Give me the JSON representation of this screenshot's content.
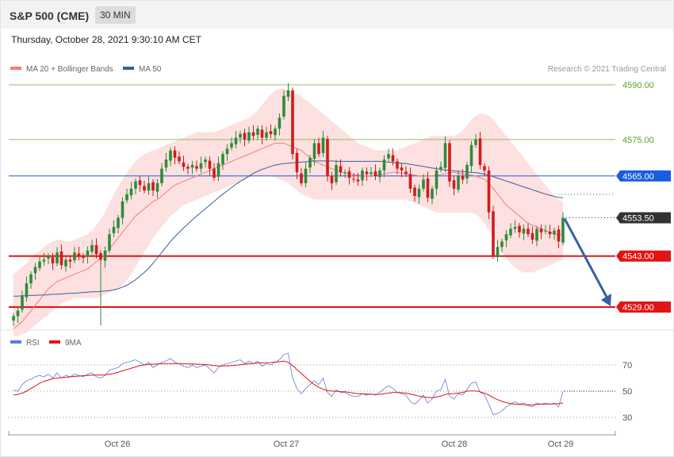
{
  "header": {
    "title": "S&P 500 (CME)",
    "timeframe": "30 MIN"
  },
  "datetime": "Thursday, October 28, 2021 9:30:10 AM CET",
  "credit": "Research © 2021 Trading Central",
  "colors": {
    "ma20": "#f47c7c",
    "bands": "#fde0e0",
    "ma50": "#3b5e9e",
    "up": "#2e8b3a",
    "down": "#d01c1c",
    "resistance": "#8cc060",
    "pivot": "#1a5be0",
    "support": "#e31414",
    "arrow": "#3660a8",
    "rsi": "#5b7fd4",
    "rsi_ma": "#e31414"
  },
  "chart_data": [
    {
      "type": "candlestick",
      "title": "S&P 500 (CME) 30 MIN",
      "legend": [
        "MA 20 + Bollinger Bands",
        "MA 50"
      ],
      "ylim": [
        4521,
        4593
      ],
      "x_ticks": [
        "Oct 26",
        "Oct 27",
        "Oct 28",
        "Oct 29"
      ],
      "levels": [
        {
          "value": 4590.0,
          "label": "4590.00",
          "kind": "resistance"
        },
        {
          "value": 4575.0,
          "label": "4575.00",
          "kind": "resistance"
        },
        {
          "value": 4565.0,
          "label": "4565.00",
          "kind": "pivot"
        },
        {
          "value": 4553.5,
          "label": "4553.50",
          "kind": "last"
        },
        {
          "value": 4543.0,
          "label": "4543.00",
          "kind": "support"
        },
        {
          "value": 4529.0,
          "label": "4529.00",
          "kind": "support"
        }
      ],
      "close": [
        4526.5,
        4528.0,
        4532.0,
        4535.5,
        4538.0,
        4540.0,
        4541.5,
        4542.0,
        4543.0,
        4541.0,
        4544.0,
        4540.5,
        4542.0,
        4541.5,
        4544.0,
        4543.0,
        4542.5,
        4544.5,
        4546.0,
        4543.5,
        4542.0,
        4544.5,
        4549.0,
        4551.0,
        4553.5,
        4558.0,
        4560.0,
        4561.5,
        4563.5,
        4562.5,
        4561.0,
        4563.0,
        4561.0,
        4563.0,
        4567.0,
        4569.5,
        4572.0,
        4570.0,
        4569.0,
        4567.5,
        4567.0,
        4568.0,
        4567.0,
        4568.5,
        4569.5,
        4567.0,
        4564.5,
        4568.5,
        4571.0,
        4572.5,
        4574.0,
        4575.5,
        4576.5,
        4575.0,
        4577.0,
        4576.0,
        4578.0,
        4575.5,
        4577.0,
        4576.5,
        4578.0,
        4581.0,
        4587.0,
        4588.5,
        4571.0,
        4566.0,
        4563.0,
        4567.0,
        4570.0,
        4574.0,
        4571.0,
        4575.5,
        4565.0,
        4563.0,
        4568.0,
        4566.0,
        4566.0,
        4564.5,
        4564.0,
        4563.5,
        4566.5,
        4565.5,
        4566.0,
        4565.0,
        4566.5,
        4569.5,
        4571.0,
        4569.0,
        4567.0,
        4566.5,
        4565.5,
        4561.5,
        4559.5,
        4561.5,
        4564.0,
        4559.0,
        4561.5,
        4566.5,
        4567.5,
        4574.0,
        4563.5,
        4561.5,
        4565.0,
        4564.0,
        4568.0,
        4573.5,
        4575.0,
        4568.0,
        4566.5,
        4555.0,
        4543.0,
        4545.5,
        4547.0,
        4549.0,
        4550.5,
        4551.0,
        4549.5,
        4550.5,
        4549.0,
        4547.5,
        4550.5,
        4549.5,
        4550.0,
        4549.0,
        4550.0,
        4547.0,
        4553.5
      ],
      "ma20": [
        4523.0,
        4524.0,
        4525.0,
        4526.5,
        4528.0,
        4529.5,
        4531.0,
        4532.5,
        4534.0,
        4535.0,
        4536.0,
        4536.5,
        4537.0,
        4537.5,
        4538.0,
        4538.5,
        4539.0,
        4539.5,
        4540.5,
        4541.5,
        4542.5,
        4543.5,
        4545.0,
        4546.5,
        4548.0,
        4549.5,
        4551.0,
        4552.5,
        4554.0,
        4555.0,
        4556.0,
        4557.0,
        4558.0,
        4558.5,
        4559.5,
        4560.5,
        4561.5,
        4562.5,
        4563.0,
        4563.5,
        4564.0,
        4564.5,
        4565.0,
        4565.5,
        4566.0,
        4566.5,
        4567.0,
        4567.5,
        4568.0,
        4568.5,
        4569.0,
        4569.5,
        4570.0,
        4570.5,
        4571.0,
        4571.5,
        4572.0,
        4572.5,
        4573.0,
        4573.5,
        4574.0,
        4574.0,
        4574.0,
        4573.5,
        4573.0,
        4572.5,
        4572.0,
        4571.0,
        4570.0,
        4569.0,
        4568.5,
        4568.0,
        4567.5,
        4567.0,
        4566.5,
        4566.0,
        4565.8,
        4565.6,
        4565.4,
        4565.2,
        4565.0,
        4565.0,
        4565.0,
        4565.2,
        4565.4,
        4565.6,
        4565.8,
        4566.0,
        4566.0,
        4565.8,
        4565.6,
        4565.4,
        4565.2,
        4565.0,
        4565.0,
        4565.0,
        4565.0,
        4565.2,
        4565.4,
        4565.6,
        4565.8,
        4566.0,
        4565.8,
        4565.6,
        4565.4,
        4565.2,
        4565.0,
        4564.5,
        4564.0,
        4563.0,
        4561.5,
        4560.0,
        4558.5,
        4557.0,
        4556.0,
        4555.0,
        4554.0,
        4553.0,
        4552.0,
        4551.5,
        4551.0,
        4550.5,
        4550.0,
        4549.5,
        4549.0,
        4548.8,
        4549.0
      ],
      "upper_band": [
        4538.0,
        4539.0,
        4540.0,
        4541.0,
        4542.5,
        4543.5,
        4544.5,
        4545.5,
        4546.5,
        4547.0,
        4547.5,
        4547.5,
        4547.0,
        4547.0,
        4547.5,
        4548.0,
        4548.5,
        4549.0,
        4550.0,
        4551.5,
        4553.0,
        4555.0,
        4557.5,
        4560.0,
        4562.0,
        4564.0,
        4566.0,
        4567.5,
        4569.0,
        4570.0,
        4571.0,
        4571.5,
        4572.0,
        4572.5,
        4573.0,
        4573.5,
        4574.0,
        4574.5,
        4575.0,
        4575.5,
        4576.0,
        4576.5,
        4577.0,
        4577.0,
        4577.0,
        4577.0,
        4577.0,
        4577.5,
        4578.0,
        4578.5,
        4579.0,
        4579.5,
        4580.0,
        4580.5,
        4581.0,
        4582.0,
        4583.0,
        4584.5,
        4586.0,
        4587.5,
        4588.5,
        4589.0,
        4589.0,
        4588.5,
        4588.0,
        4587.5,
        4587.0,
        4586.0,
        4585.0,
        4584.0,
        4583.0,
        4582.0,
        4581.0,
        4580.0,
        4579.0,
        4578.0,
        4577.0,
        4576.0,
        4575.0,
        4574.0,
        4573.5,
        4573.0,
        4572.5,
        4572.0,
        4572.0,
        4572.0,
        4572.0,
        4572.0,
        4572.0,
        4572.5,
        4573.0,
        4573.5,
        4574.0,
        4574.5,
        4575.0,
        4575.5,
        4576.0,
        4576.0,
        4576.0,
        4576.0,
        4576.0,
        4576.0,
        4576.5,
        4577.5,
        4579.0,
        4580.5,
        4581.5,
        4582.0,
        4582.0,
        4581.5,
        4580.5,
        4579.0,
        4577.5,
        4576.0,
        4574.5,
        4573.0,
        4571.5,
        4570.0,
        4568.5,
        4567.0,
        4565.5,
        4564.0,
        4562.5,
        4561.0,
        4559.5,
        4558.5,
        4558.0
      ],
      "lower_band": [
        4521.0,
        4521.0,
        4521.5,
        4522.0,
        4523.0,
        4524.0,
        4525.0,
        4526.0,
        4527.0,
        4528.0,
        4529.0,
        4530.0,
        4530.5,
        4531.0,
        4531.5,
        4531.5,
        4531.5,
        4531.5,
        4531.5,
        4531.5,
        4532.0,
        4532.5,
        4533.0,
        4533.5,
        4534.0,
        4535.0,
        4536.5,
        4538.0,
        4540.0,
        4542.0,
        4544.0,
        4546.0,
        4548.0,
        4549.5,
        4551.0,
        4552.5,
        4554.0,
        4555.0,
        4556.0,
        4557.0,
        4557.5,
        4558.0,
        4558.5,
        4559.0,
        4559.5,
        4560.0,
        4560.5,
        4561.0,
        4561.5,
        4562.0,
        4562.5,
        4563.0,
        4563.5,
        4564.0,
        4564.5,
        4565.0,
        4565.0,
        4565.0,
        4565.0,
        4565.0,
        4564.5,
        4564.0,
        4563.5,
        4563.0,
        4562.0,
        4561.0,
        4560.0,
        4559.5,
        4559.0,
        4558.5,
        4558.5,
        4558.5,
        4558.5,
        4558.5,
        4558.5,
        4558.5,
        4558.5,
        4558.5,
        4558.5,
        4558.5,
        4558.5,
        4558.5,
        4558.5,
        4558.5,
        4558.5,
        4558.5,
        4558.5,
        4558.5,
        4558.5,
        4558.5,
        4558.5,
        4558.0,
        4557.5,
        4557.0,
        4556.5,
        4556.0,
        4555.5,
        4555.0,
        4555.0,
        4555.0,
        4555.0,
        4555.0,
        4555.0,
        4555.0,
        4555.0,
        4555.0,
        4554.5,
        4553.5,
        4552.0,
        4550.0,
        4548.0,
        4546.0,
        4544.0,
        4542.5,
        4541.0,
        4540.0,
        4539.0,
        4538.5,
        4538.5,
        4538.5,
        4539.0,
        4539.5,
        4540.0,
        4540.5,
        4541.0,
        4541.5,
        4542.0
      ],
      "ma50": [
        4532.0,
        4532.0,
        4532.1,
        4532.1,
        4532.2,
        4532.2,
        4532.3,
        4532.3,
        4532.4,
        4532.5,
        4532.5,
        4532.6,
        4532.7,
        4532.8,
        4532.8,
        4532.9,
        4533.0,
        4533.1,
        4533.2,
        4533.2,
        4533.3,
        4533.4,
        4533.5,
        4533.7,
        4534.0,
        4534.5,
        4535.0,
        4535.7,
        4536.5,
        4537.5,
        4538.5,
        4539.7,
        4541.0,
        4542.5,
        4544.0,
        4545.5,
        4547.0,
        4548.3,
        4549.5,
        4550.7,
        4551.8,
        4552.9,
        4554.0,
        4555.0,
        4556.0,
        4557.0,
        4558.0,
        4559.0,
        4560.0,
        4560.9,
        4561.8,
        4562.7,
        4563.5,
        4564.2,
        4565.0,
        4565.7,
        4566.3,
        4566.8,
        4567.2,
        4567.6,
        4568.0,
        4568.2,
        4568.4,
        4568.5,
        4568.6,
        4568.7,
        4568.8,
        4568.9,
        4569.0,
        4569.1,
        4569.1,
        4569.1,
        4569.1,
        4569.1,
        4569.0,
        4569.0,
        4569.0,
        4569.0,
        4569.0,
        4569.0,
        4569.0,
        4569.0,
        4569.0,
        4569.0,
        4569.0,
        4568.9,
        4568.8,
        4568.7,
        4568.6,
        4568.5,
        4568.4,
        4568.2,
        4568.0,
        4567.8,
        4567.6,
        4567.4,
        4567.2,
        4567.0,
        4566.8,
        4566.6,
        4566.5,
        4566.4,
        4566.3,
        4566.2,
        4566.1,
        4566.0,
        4565.9,
        4565.7,
        4565.5,
        4565.2,
        4564.8,
        4564.4,
        4564.0,
        4563.6,
        4563.2,
        4562.8,
        4562.4,
        4562.0,
        4561.6,
        4561.2,
        4560.8,
        4560.4,
        4560.0,
        4559.7,
        4559.4,
        4559.1,
        4559.0
      ]
    },
    {
      "type": "line",
      "legend": [
        "RSI",
        "9MA"
      ],
      "ylim": [
        25,
        80
      ],
      "y_ticks": [
        "70",
        "50",
        "30"
      ],
      "rsi": [
        51,
        50,
        55,
        58,
        59,
        61,
        62,
        61,
        63,
        60,
        64,
        60,
        62,
        61,
        63,
        62,
        61,
        63,
        64,
        61,
        60,
        62,
        66,
        67,
        68,
        71,
        72,
        73,
        74,
        72,
        70,
        72,
        68,
        70,
        72,
        73,
        75,
        72,
        71,
        69,
        68,
        70,
        68,
        69,
        70,
        67,
        64,
        68,
        70,
        71,
        72,
        73,
        74,
        71,
        73,
        71,
        73,
        69,
        71,
        70,
        72,
        74,
        78,
        79,
        60,
        52,
        48,
        52,
        55,
        58,
        55,
        60,
        49,
        46,
        51,
        49,
        49,
        47,
        46,
        46,
        48,
        47,
        48,
        47,
        49,
        52,
        54,
        52,
        49,
        48,
        47,
        42,
        40,
        43,
        47,
        41,
        44,
        50,
        51,
        59,
        46,
        44,
        48,
        47,
        51,
        56,
        57,
        49,
        47,
        40,
        32,
        33,
        35,
        38,
        40,
        42,
        40,
        41,
        39,
        38,
        41,
        40,
        41,
        40,
        41,
        38,
        50
      ],
      "ma9": [
        47,
        47.5,
        48.5,
        50,
        52,
        54,
        56,
        57.5,
        58.5,
        59.5,
        60,
        60.3,
        60.5,
        61,
        61.2,
        61.5,
        61.8,
        62,
        62.2,
        62.3,
        62.3,
        62.5,
        63,
        63.5,
        64.5,
        65.5,
        66.5,
        67.5,
        68.5,
        69.5,
        70,
        70.4,
        70.6,
        70.8,
        71,
        71,
        71.1,
        71.1,
        71.1,
        71,
        70.8,
        70.7,
        70.6,
        70.5,
        70.3,
        70,
        69.5,
        69.2,
        69.2,
        69.3,
        69.5,
        69.8,
        70.2,
        70.6,
        70.9,
        71.2,
        71.5,
        71.6,
        71.7,
        71.9,
        72.2,
        72.5,
        73,
        72,
        69.5,
        66.5,
        63.5,
        60.5,
        57.5,
        55,
        53,
        51.5,
        50.5,
        50,
        50,
        49.5,
        49.5,
        49,
        48.5,
        48,
        48,
        47.8,
        47.6,
        47.5,
        47.6,
        48,
        48.5,
        49,
        49,
        48.8,
        48.5,
        47.8,
        47,
        46.2,
        45.5,
        45.2,
        45,
        45.5,
        46.3,
        47.5,
        48,
        48.2,
        48.5,
        49,
        50,
        50.2,
        50.1,
        49.5,
        48.5,
        47,
        45,
        43.5,
        42.2,
        41.2,
        40.5,
        40,
        39.8,
        39.7,
        39.6,
        39.6,
        39.8,
        40,
        40.1,
        40.2,
        40.3,
        40.5,
        41
      ]
    }
  ]
}
